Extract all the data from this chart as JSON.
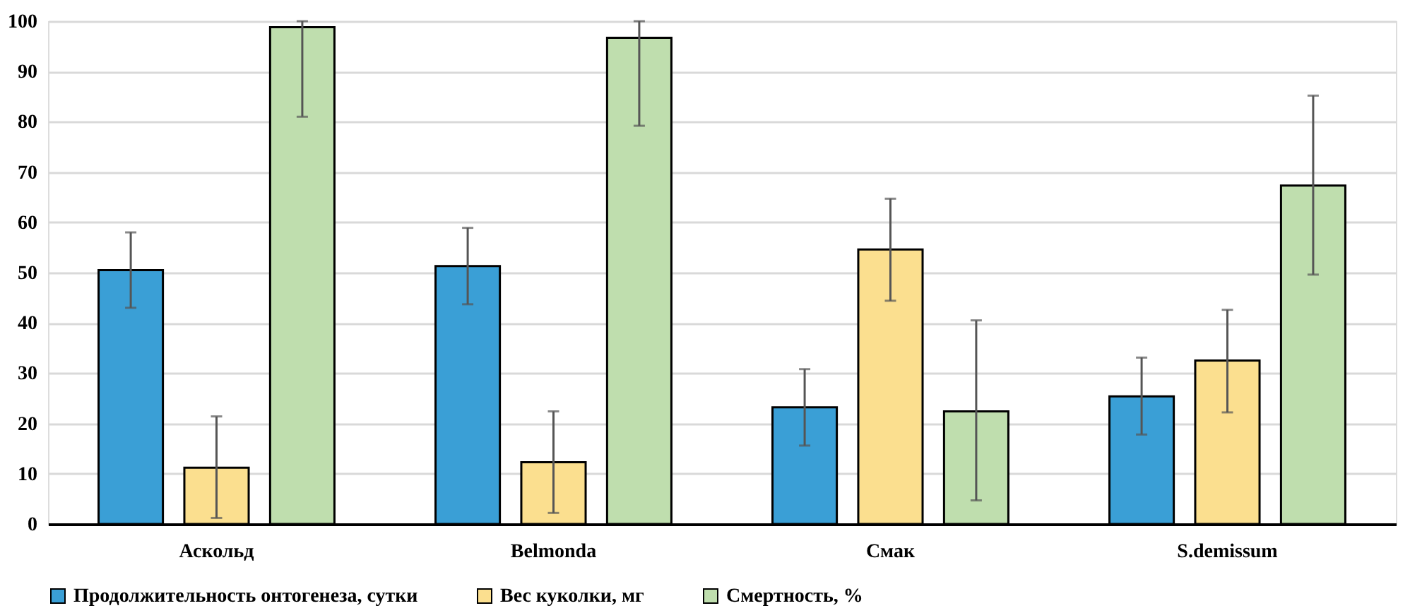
{
  "chart_data": {
    "type": "bar",
    "categories": [
      "Аскольд",
      "Belmonda",
      "Смак",
      "S.demissum"
    ],
    "series": [
      {
        "name": "Продолжительность онтогенеза, сутки",
        "color": "#3a9fd6",
        "values": [
          50.5,
          51.3,
          23.2,
          25.4
        ],
        "errors": [
          [
            43,
            58
          ],
          [
            43.7,
            58.9
          ],
          [
            15.6,
            30.8
          ],
          [
            17.8,
            33.1
          ]
        ]
      },
      {
        "name": "Вес куколки, мг",
        "color": "#fbdf8f",
        "values": [
          11.2,
          12.3,
          54.6,
          32.5
        ],
        "errors": [
          [
            1.2,
            21.4
          ],
          [
            2.2,
            22.4
          ],
          [
            44.4,
            64.7
          ],
          [
            22.2,
            42.6
          ]
        ]
      },
      {
        "name": "Смертность, %",
        "color": "#bfdeae",
        "values": [
          98.8,
          96.7,
          22.4,
          67.3
        ],
        "errors": [
          [
            81,
            100
          ],
          [
            79.2,
            100
          ],
          [
            4.7,
            40.5
          ],
          [
            49.6,
            85.2
          ]
        ]
      }
    ],
    "ylim": [
      0,
      100
    ],
    "yticks": [
      0,
      10,
      20,
      30,
      40,
      50,
      60,
      70,
      80,
      90,
      100
    ],
    "grid": "y",
    "legend": "bottom"
  }
}
